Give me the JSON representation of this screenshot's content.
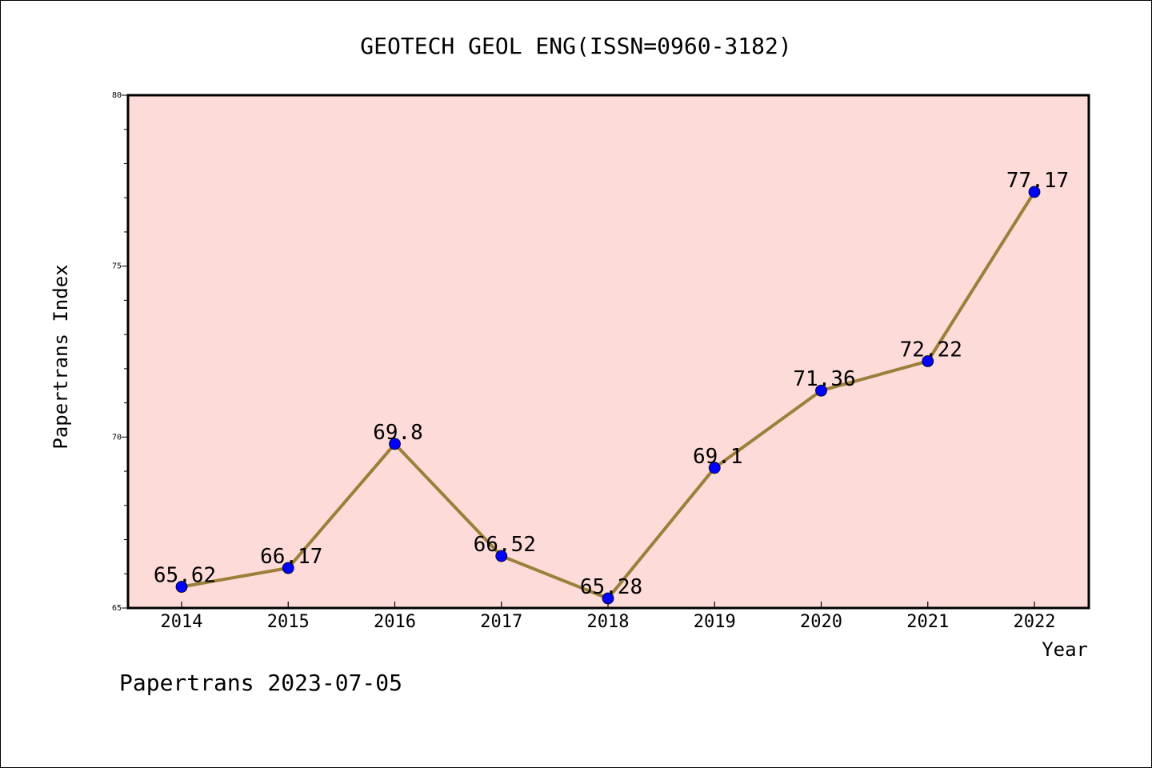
{
  "colors": {
    "plot_background": "#fddbd8",
    "line": "#9b7f3a",
    "marker": "#0000ff"
  },
  "footer": "Papertrans 2023-07-05",
  "chart_data": {
    "type": "line",
    "title": "GEOTECH GEOL ENG(ISSN=0960-3182)",
    "xlabel": "Year",
    "ylabel": "Papertrans Index",
    "categories": [
      "2014",
      "2015",
      "2016",
      "2017",
      "2018",
      "2019",
      "2020",
      "2021",
      "2022"
    ],
    "series": [
      {
        "values": [
          65.62,
          66.17,
          69.8,
          66.52,
          65.28,
          69.1,
          71.36,
          72.22,
          77.17
        ],
        "labels": [
          "65.62",
          "66.17",
          "69.8",
          "66.52",
          "65.28",
          "69.1",
          "71.36",
          "72.22",
          "77.17"
        ]
      }
    ],
    "ylim": [
      65,
      80
    ],
    "yticks": [
      "65",
      "70",
      "75",
      "80"
    ],
    "grid": false,
    "legend": "none"
  }
}
